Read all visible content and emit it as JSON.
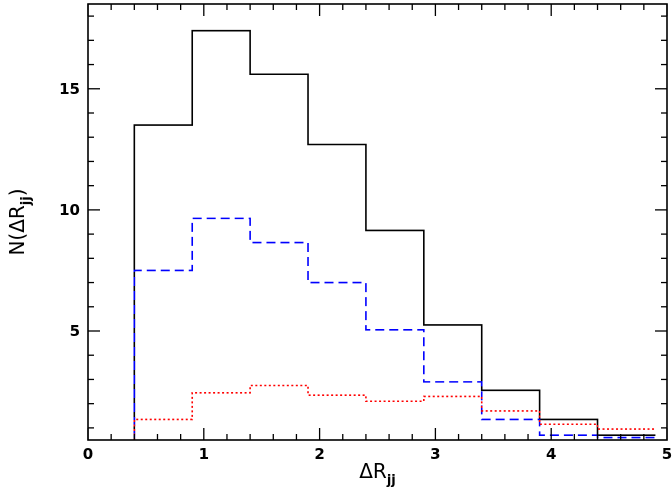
{
  "chart_data": {
    "type": "line",
    "drawstyle": "steps",
    "title": "",
    "xlabel": {
      "main": "ΔR",
      "sub": "jj"
    },
    "ylabel": {
      "prefix": "N(ΔR",
      "sub": "jj",
      "suffix": ")"
    },
    "xlim": [
      0,
      5
    ],
    "ylim": [
      0.5,
      18.5
    ],
    "x_major_ticks": [
      0,
      1,
      2,
      3,
      4,
      5
    ],
    "x_tick_labels": [
      "0",
      "1",
      "2",
      "3",
      "4",
      "5"
    ],
    "x_minor_step": 0.2,
    "y_major_ticks": [
      5,
      10,
      15
    ],
    "y_tick_labels": [
      "5",
      "10",
      "15"
    ],
    "y_minor_step": 1,
    "grid": false,
    "legend": "none",
    "bin_edges": [
      0.4,
      0.9,
      1.4,
      1.9,
      2.4,
      2.9,
      3.4,
      3.9,
      4.4,
      4.9
    ],
    "series": [
      {
        "style": "solid",
        "color": "#000000",
        "values": [
          13.5,
          17.4,
          15.6,
          12.7,
          9.15,
          5.25,
          2.55,
          1.35,
          0.7
        ]
      },
      {
        "style": "dashed",
        "color": "#0000ff",
        "values": [
          7.5,
          9.65,
          8.65,
          7.0,
          5.05,
          2.9,
          1.35,
          0.7,
          0.6
        ]
      },
      {
        "style": "dotted",
        "color": "#ff0000",
        "values": [
          1.35,
          2.45,
          2.75,
          2.35,
          2.1,
          2.3,
          1.7,
          1.15,
          0.95
        ]
      }
    ]
  }
}
